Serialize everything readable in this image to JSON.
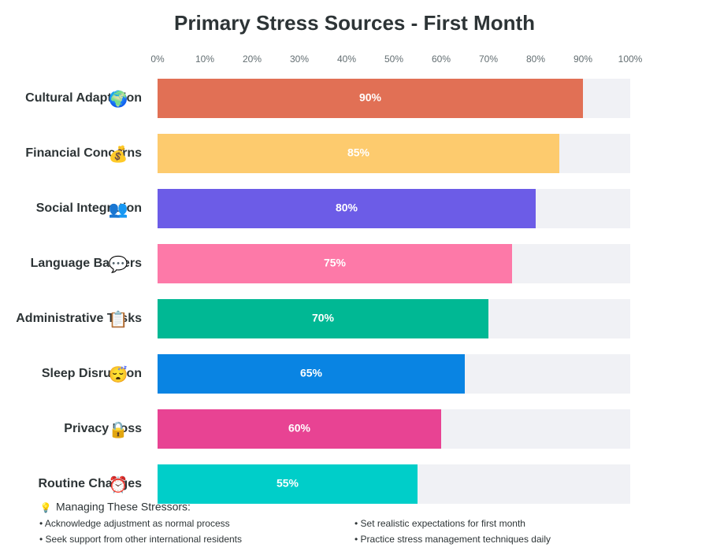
{
  "chart_data": {
    "type": "bar",
    "orientation": "horizontal",
    "title": "Primary Stress Sources - First Month",
    "categories": [
      "Cultural Adaptation",
      "Financial Concerns",
      "Social Integration",
      "Language Barriers",
      "Administrative Tasks",
      "Sleep Disruption",
      "Privacy Loss",
      "Routine Changes"
    ],
    "icons": [
      "🌍",
      "💰",
      "👥",
      "💬",
      "📋",
      "😴",
      "🔒",
      "⏰"
    ],
    "values": [
      90,
      85,
      80,
      75,
      70,
      65,
      60,
      55
    ],
    "value_labels": [
      "90%",
      "85%",
      "80%",
      "75%",
      "70%",
      "65%",
      "60%",
      "55%"
    ],
    "colors": [
      "#e17055",
      "#fdcb6e",
      "#6c5ce7",
      "#fd79a8",
      "#00b894",
      "#0984e3",
      "#e84393",
      "#00cec9"
    ],
    "xlim": [
      0,
      100
    ],
    "xticks": [
      {
        "value": 0,
        "label": "0%"
      },
      {
        "value": 10,
        "label": "10%"
      },
      {
        "value": 20,
        "label": "20%"
      },
      {
        "value": 30,
        "label": "30%"
      },
      {
        "value": 40,
        "label": "40%"
      },
      {
        "value": 50,
        "label": "50%"
      },
      {
        "value": 60,
        "label": "60%"
      },
      {
        "value": 70,
        "label": "70%"
      },
      {
        "value": 80,
        "label": "80%"
      },
      {
        "value": 90,
        "label": "90%"
      },
      {
        "value": 100,
        "label": "100%"
      }
    ]
  },
  "tips": {
    "icon": "💡",
    "heading": "Managing These Stressors:",
    "items": [
      "• Acknowledge adjustment as normal process",
      "• Set realistic expectations for first month",
      "• Seek support from other international residents",
      "• Practice stress management techniques daily"
    ]
  }
}
